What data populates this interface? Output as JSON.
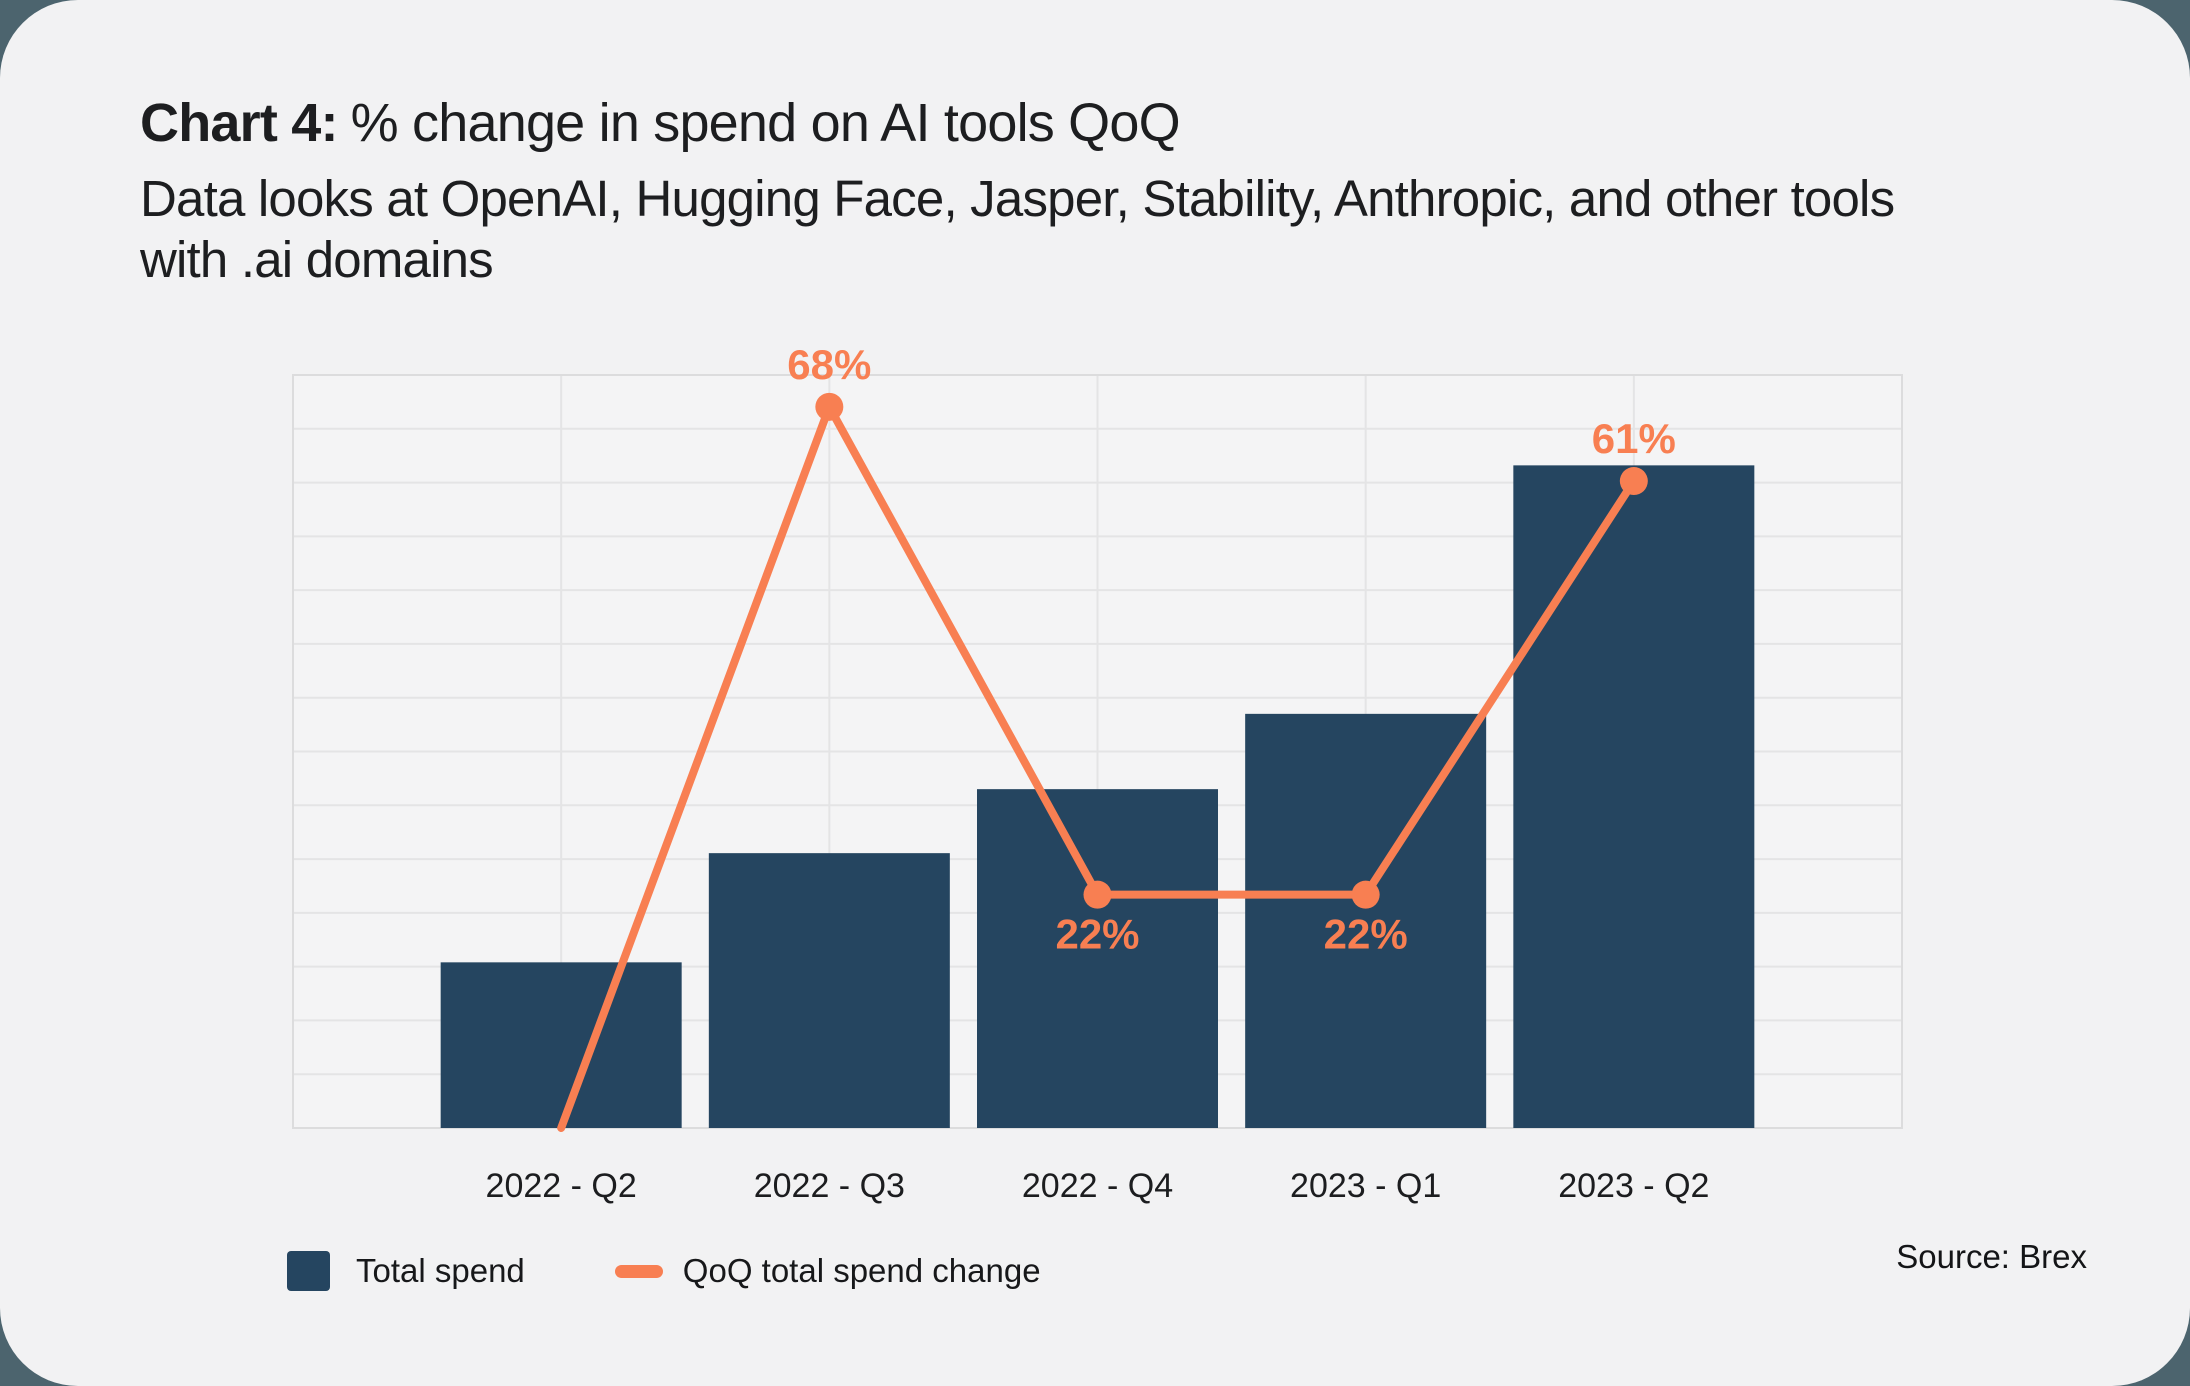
{
  "colors": {
    "navy": "#254560",
    "orange": "#f87f52",
    "card_bg": "#f2f2f3",
    "page_bg": "#4c646e",
    "plot_bg": "#f4f4f5",
    "grid": "#e4e4e5",
    "plot_border": "#dcdcdd",
    "text_dark": "#1d1e20"
  },
  "header": {
    "title_prefix": "Chart 4:",
    "title_rest": "% change in spend on AI tools QoQ",
    "subtitle_lines": [
      "Data looks at OpenAI, Hugging Face, Jasper, Stability, Anthropic, and other tools",
      "with .ai domains"
    ]
  },
  "legend": {
    "items": [
      {
        "label": "Total spend",
        "swatch": "navy-square"
      },
      {
        "label": "QoQ total spend change",
        "swatch": "orange-line"
      }
    ]
  },
  "source": {
    "text": "Source: Brex"
  },
  "chart_data": {
    "type": "bar",
    "title": "Chart 4: % change in spend on AI tools QoQ",
    "subtitle": "Data looks at OpenAI, Hugging Face, Jasper, Stability, Anthropic, and other tools with .ai domains",
    "categories": [
      "2022 - Q2",
      "2022 - Q3",
      "2022 - Q4",
      "2023 - Q1",
      "2023 - Q2"
    ],
    "series": [
      {
        "name": "Total spend",
        "type": "bar",
        "color": "#254560",
        "values": [
          22,
          36.5,
          45,
          55,
          88
        ],
        "note": "bar y-axis is unlabeled; values are percent of plot height"
      },
      {
        "name": "QoQ total spend change",
        "type": "line",
        "color": "#f87f52",
        "values": [
          0,
          68,
          22,
          22,
          61
        ],
        "labels": [
          "",
          "68%",
          "22%",
          "22%",
          "61%"
        ],
        "label_positions": [
          "",
          "above",
          "below",
          "below",
          "above"
        ]
      }
    ],
    "xlabel": "",
    "ylabel": "",
    "bar_axis_max": 100,
    "line_ylim": [
      0,
      71
    ],
    "grid": true,
    "grid_rows": 14,
    "legend_position": "bottom-left",
    "y_tick_labels_shown": false
  }
}
